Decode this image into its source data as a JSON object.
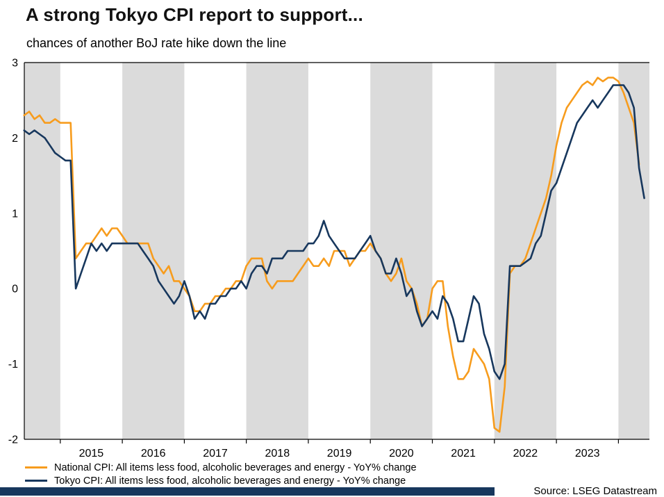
{
  "header": {
    "title": "A strong Tokyo CPI report to support...",
    "subtitle": "chances of another BoJ rate hike down the line"
  },
  "footer": {
    "source": "Source: LSEG Datastream",
    "bar_color": "#17375D"
  },
  "chart_data": {
    "type": "line",
    "title": "A strong Tokyo CPI report to support...",
    "subtitle": "chances of another BoJ rate hike down the line",
    "grid": false,
    "legend_position": "bottom-left",
    "plot": {
      "band_color": "#DBDBDB",
      "background": "#FFFFFF",
      "axis_color": "#000000",
      "gray_band_years": "even"
    },
    "x_axis": {
      "min": 2014.42,
      "max": 2024.5,
      "unit": "year",
      "tick_labels": [
        "2015",
        "2016",
        "2017",
        "2018",
        "2019",
        "2020",
        "2021",
        "2022",
        "2023"
      ]
    },
    "y_axis": {
      "min": -2,
      "max": 3,
      "ticks": [
        -2,
        -1,
        0,
        1,
        2,
        3
      ],
      "unit": "YoY % change"
    },
    "series": [
      {
        "name": "National CPI: All items less food, alcoholic beverages and energy - YoY% change",
        "data_name": "national-cpi-line",
        "color": "#F79C1D",
        "frequency": "monthly",
        "start_year": 2014,
        "start_month": 6,
        "values": [
          2.3,
          2.35,
          2.25,
          2.3,
          2.2,
          2.2,
          2.25,
          2.2,
          2.2,
          2.2,
          0.4,
          0.5,
          0.6,
          0.6,
          0.7,
          0.8,
          0.7,
          0.8,
          0.8,
          0.7,
          0.6,
          0.6,
          0.6,
          0.6,
          0.6,
          0.4,
          0.3,
          0.2,
          0.3,
          0.1,
          0.1,
          0.0,
          -0.1,
          -0.3,
          -0.3,
          -0.2,
          -0.2,
          -0.1,
          -0.1,
          0.0,
          0.0,
          0.1,
          0.1,
          0.3,
          0.4,
          0.4,
          0.4,
          0.1,
          0.0,
          0.1,
          0.1,
          0.1,
          0.1,
          0.2,
          0.3,
          0.4,
          0.3,
          0.3,
          0.4,
          0.3,
          0.5,
          0.5,
          0.5,
          0.3,
          0.4,
          0.5,
          0.5,
          0.6,
          0.5,
          0.4,
          0.2,
          0.1,
          0.2,
          0.4,
          0.1,
          0.0,
          -0.2,
          -0.5,
          -0.4,
          0.0,
          0.1,
          0.1,
          -0.5,
          -0.9,
          -1.2,
          -1.2,
          -1.1,
          -0.8,
          -0.9,
          -1.0,
          -1.2,
          -1.85,
          -1.9,
          -1.3,
          0.2,
          0.3,
          0.3,
          0.4,
          0.6,
          0.8,
          1.0,
          1.2,
          1.5,
          1.9,
          2.2,
          2.4,
          2.5,
          2.6,
          2.7,
          2.75,
          2.7,
          2.8,
          2.75,
          2.8,
          2.8,
          2.75,
          2.6,
          2.4,
          2.2,
          1.65
        ]
      },
      {
        "name": "Tokyo CPI: All items less food, alcoholic beverages and energy - YoY% change",
        "data_name": "tokyo-cpi-line",
        "color": "#17375D",
        "frequency": "monthly",
        "start_year": 2014,
        "start_month": 6,
        "values": [
          2.1,
          2.05,
          2.1,
          2.05,
          2.0,
          1.9,
          1.8,
          1.75,
          1.7,
          1.7,
          0.0,
          0.2,
          0.4,
          0.6,
          0.5,
          0.6,
          0.5,
          0.6,
          0.6,
          0.6,
          0.6,
          0.6,
          0.6,
          0.5,
          0.4,
          0.3,
          0.1,
          0.0,
          -0.1,
          -0.2,
          -0.1,
          0.1,
          -0.1,
          -0.4,
          -0.3,
          -0.4,
          -0.2,
          -0.2,
          -0.1,
          -0.1,
          0.0,
          0.0,
          0.1,
          0.0,
          0.2,
          0.3,
          0.3,
          0.2,
          0.4,
          0.4,
          0.4,
          0.5,
          0.5,
          0.5,
          0.5,
          0.6,
          0.6,
          0.7,
          0.9,
          0.7,
          0.6,
          0.5,
          0.4,
          0.4,
          0.4,
          0.5,
          0.6,
          0.7,
          0.5,
          0.4,
          0.2,
          0.2,
          0.4,
          0.2,
          -0.1,
          0.0,
          -0.3,
          -0.5,
          -0.4,
          -0.3,
          -0.4,
          -0.1,
          -0.2,
          -0.4,
          -0.7,
          -0.7,
          -0.4,
          -0.1,
          -0.2,
          -0.6,
          -0.8,
          -1.1,
          -1.2,
          -1.0,
          0.3,
          0.3,
          0.3,
          0.35,
          0.4,
          0.6,
          0.7,
          1.0,
          1.3,
          1.4,
          1.6,
          1.8,
          2.0,
          2.2,
          2.3,
          2.4,
          2.5,
          2.4,
          2.5,
          2.6,
          2.7,
          2.7,
          2.7,
          2.6,
          2.4,
          1.6,
          1.2
        ]
      }
    ]
  }
}
